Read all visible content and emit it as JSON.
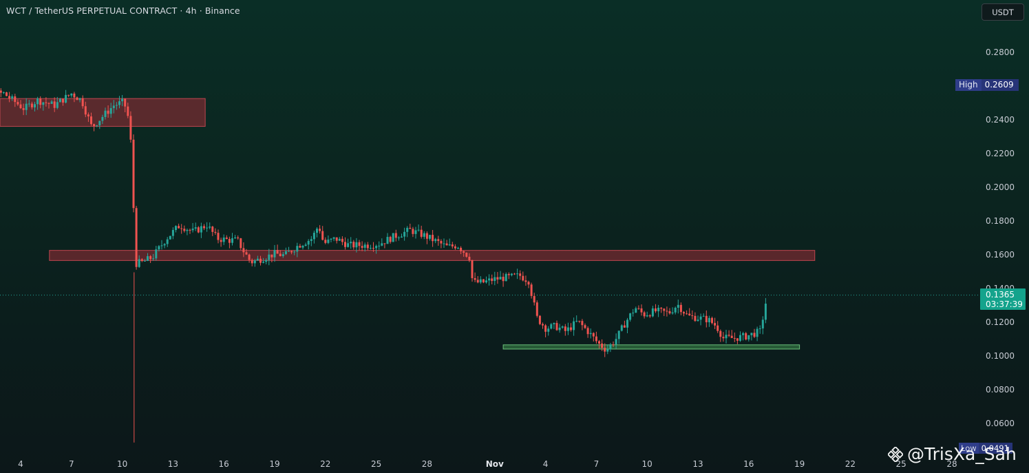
{
  "header": {
    "title": "WCT / TetherUS PERPETUAL CONTRACT · 4h · Binance"
  },
  "currency_button": "USDT",
  "price_tags": {
    "high_label": "High",
    "high_value": "0.2609",
    "low_label": "Low",
    "low_value": "0.0491",
    "last_price": "0.1365",
    "countdown": "03:37:39"
  },
  "watermark": "@TrisXa_Sah",
  "colors": {
    "up": "#26a69a",
    "down": "#ef5350",
    "resistance_zone": "#8b2b33",
    "support_zone": "#3f8f4e",
    "last_price_tag": "#14a38c",
    "high_low_tag": "#273478"
  },
  "chart_data": {
    "type": "candlestick",
    "symbol": "WCT / TetherUS PERPETUAL CONTRACT",
    "timeframe": "4h",
    "exchange": "Binance",
    "ylim": [
      0.045,
      0.305
    ],
    "y_ticks": [
      "0.2800",
      "0.2400",
      "0.2200",
      "0.2000",
      "0.1800",
      "0.1600",
      "0.1400",
      "0.1200",
      "0.1000",
      "0.0800",
      "0.0600"
    ],
    "x_ticks": [
      "4",
      "7",
      "10",
      "13",
      "16",
      "19",
      "22",
      "25",
      "28",
      "Nov",
      "4",
      "7",
      "10",
      "13",
      "16",
      "19",
      "22",
      "25",
      "28"
    ],
    "x_tick_days": [
      4,
      7,
      10,
      13,
      16,
      19,
      22,
      25,
      28,
      32,
      35,
      38,
      41,
      44,
      47,
      50,
      53,
      56,
      59
    ],
    "high": 0.2609,
    "low": 0.0491,
    "last": 0.1365,
    "zones": [
      {
        "kind": "resistance",
        "from_day": 2.7,
        "to_day": 14.9,
        "low": 0.2365,
        "high": 0.253
      },
      {
        "kind": "resistance",
        "from_day": 5.7,
        "to_day": 50.9,
        "low": 0.157,
        "high": 0.163
      },
      {
        "kind": "support",
        "from_day": 32.5,
        "to_day": 50.0,
        "low": 0.1045,
        "high": 0.107
      }
    ],
    "path": [
      [
        3.0,
        0.256
      ],
      [
        4.2,
        0.247
      ],
      [
        5.0,
        0.252
      ],
      [
        6.0,
        0.249
      ],
      [
        7.0,
        0.256
      ],
      [
        7.6,
        0.252
      ],
      [
        8.2,
        0.236
      ],
      [
        8.8,
        0.242
      ],
      [
        9.5,
        0.249
      ],
      [
        10.1,
        0.251
      ],
      [
        10.4,
        0.24
      ],
      [
        10.6,
        0.215
      ],
      [
        10.75,
        0.155
      ],
      [
        11.2,
        0.156
      ],
      [
        11.8,
        0.159
      ],
      [
        12.6,
        0.17
      ],
      [
        13.4,
        0.178
      ],
      [
        14.2,
        0.174
      ],
      [
        15.0,
        0.178
      ],
      [
        15.6,
        0.17
      ],
      [
        16.4,
        0.169
      ],
      [
        16.8,
        0.169
      ],
      [
        17.2,
        0.162
      ],
      [
        17.6,
        0.156
      ],
      [
        18.2,
        0.158
      ],
      [
        19.0,
        0.161
      ],
      [
        19.6,
        0.16
      ],
      [
        20.4,
        0.166
      ],
      [
        21.2,
        0.17
      ],
      [
        21.6,
        0.178
      ],
      [
        21.9,
        0.167
      ],
      [
        22.6,
        0.17
      ],
      [
        23.4,
        0.166
      ],
      [
        24.4,
        0.166
      ],
      [
        25.2,
        0.167
      ],
      [
        26.0,
        0.171
      ],
      [
        27.0,
        0.175
      ],
      [
        27.8,
        0.172
      ],
      [
        28.4,
        0.169
      ],
      [
        29.2,
        0.165
      ],
      [
        29.8,
        0.166
      ],
      [
        30.5,
        0.159
      ],
      [
        30.7,
        0.144
      ],
      [
        31.3,
        0.144
      ],
      [
        32.0,
        0.146
      ],
      [
        32.8,
        0.147
      ],
      [
        33.5,
        0.148
      ],
      [
        34.0,
        0.145
      ],
      [
        34.5,
        0.123
      ],
      [
        35.0,
        0.117
      ],
      [
        35.6,
        0.118
      ],
      [
        36.2,
        0.115
      ],
      [
        36.9,
        0.121
      ],
      [
        37.5,
        0.115
      ],
      [
        38.1,
        0.108
      ],
      [
        38.6,
        0.104
      ],
      [
        39.2,
        0.111
      ],
      [
        39.7,
        0.12
      ],
      [
        40.3,
        0.129
      ],
      [
        40.8,
        0.125
      ],
      [
        41.5,
        0.127
      ],
      [
        42.3,
        0.126
      ],
      [
        42.8,
        0.131
      ],
      [
        43.4,
        0.124
      ],
      [
        44.0,
        0.123
      ],
      [
        44.6,
        0.122
      ],
      [
        45.1,
        0.118
      ],
      [
        45.5,
        0.111
      ],
      [
        46.1,
        0.111
      ],
      [
        46.8,
        0.112
      ],
      [
        47.4,
        0.114
      ],
      [
        47.7,
        0.115
      ],
      [
        47.9,
        0.127
      ],
      [
        48.1,
        0.1365
      ]
    ]
  }
}
